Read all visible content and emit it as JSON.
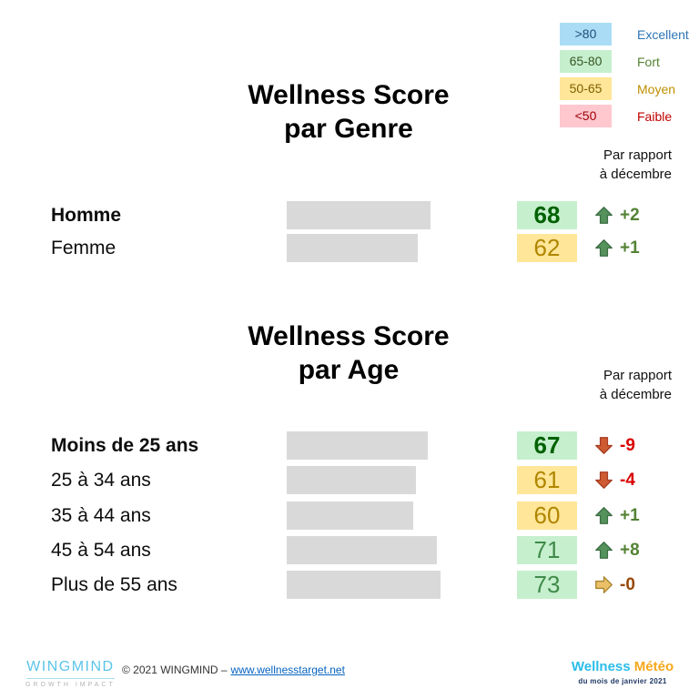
{
  "legend": {
    "items": [
      {
        "range": ">80",
        "label": "Excellent",
        "box_bg": "#aaddf5",
        "label_color": "#2e75b6"
      },
      {
        "range": "65-80",
        "label": "Fort",
        "box_bg": "#c6efce",
        "label_color": "#548235"
      },
      {
        "range": "50-65",
        "label": "Moyen",
        "box_bg": "#ffe699",
        "label_color": "#bf8f00"
      },
      {
        "range": "<50",
        "label": "Faible",
        "box_bg": "#ffc7ce",
        "label_color": "#c00000"
      }
    ]
  },
  "chart_data": [
    {
      "type": "bar",
      "title": "Wellness Score par Genre",
      "title_line1": "Wellness Score",
      "title_line2": "par Genre",
      "comparison_line1": "Par rapport",
      "comparison_line2": "à décembre",
      "categories": [
        "Homme",
        "Femme"
      ],
      "values": [
        68,
        62
      ],
      "value_range": [
        0,
        100
      ],
      "rows": [
        {
          "label": "Homme",
          "score": 68,
          "band": "fort",
          "trend": "up",
          "delta": "+2"
        },
        {
          "label": "Femme",
          "score": 62,
          "band": "moyen",
          "trend": "up",
          "delta": "+1"
        }
      ]
    },
    {
      "type": "bar",
      "title": "Wellness Score par Age",
      "title_line1": "Wellness Score",
      "title_line2": "par Age",
      "comparison_line1": "Par rapport",
      "comparison_line2": "à décembre",
      "categories": [
        "Moins de 25 ans",
        "25 à 34 ans",
        "35 à 44 ans",
        "45 à 54 ans",
        "Plus de 55 ans"
      ],
      "values": [
        67,
        61,
        60,
        71,
        73
      ],
      "value_range": [
        0,
        100
      ],
      "rows": [
        {
          "label": "Moins de 25 ans",
          "score": 67,
          "band": "fort",
          "trend": "down",
          "delta": "-9"
        },
        {
          "label": "25 à 34 ans",
          "score": 61,
          "band": "moyen",
          "trend": "down",
          "delta": "-4"
        },
        {
          "label": "35 à 44 ans",
          "score": 60,
          "band": "moyen",
          "trend": "up",
          "delta": "+1"
        },
        {
          "label": "45 à 54 ans",
          "score": 71,
          "band": "fort",
          "trend": "up",
          "delta": "+8"
        },
        {
          "label": "Plus de 55 ans",
          "score": 73,
          "band": "fort",
          "trend": "flat",
          "delta": "-0"
        }
      ]
    }
  ],
  "footer": {
    "brand_name": "WINGMIND",
    "brand_tagline": "GROWTH IMPACT",
    "copyright_text": "© 2021 WINGMIND –",
    "link_text": "www.wellnesstarget.net",
    "meteo_part1": "Wellness",
    "meteo_part2": "Météo",
    "meteo_subtitle": "du mois de janvier 2021"
  },
  "colors": {
    "bar_gray": "#d9d9d9",
    "excellent_bg": "#aaddf5",
    "fort_bg": "#c6efce",
    "moyen_bg": "#ffe699",
    "faible_bg": "#ffc7ce",
    "trend_up": "#548235",
    "trend_down": "#d90000",
    "trend_flat": "#974706",
    "brand_cyan": "#2bbde9",
    "brand_orange": "#f6a81c",
    "link_blue": "#0563c1"
  }
}
